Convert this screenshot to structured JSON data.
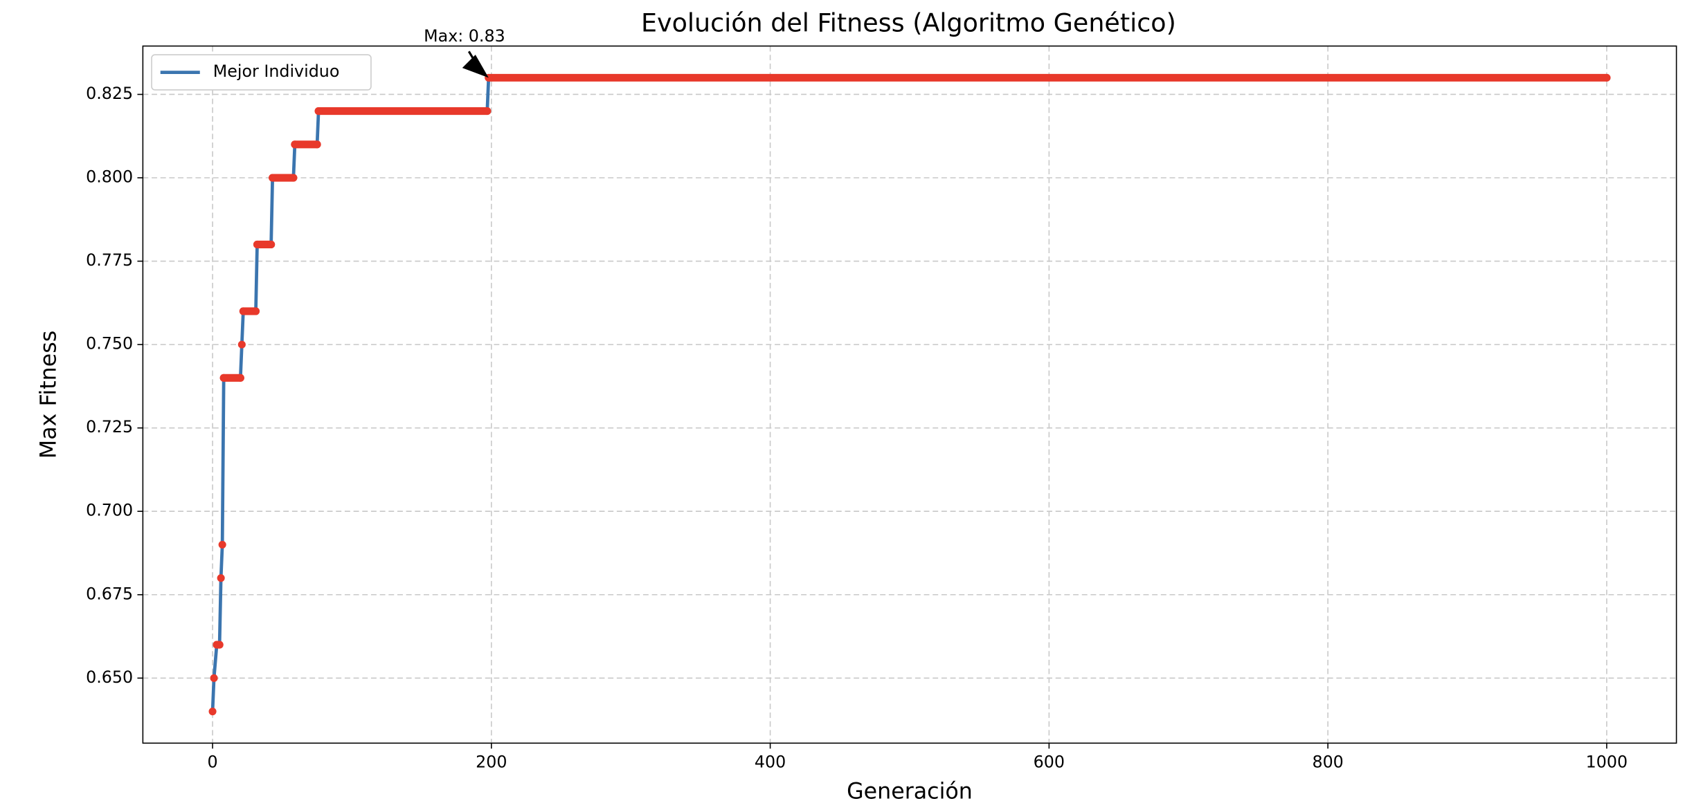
{
  "chart_data": {
    "type": "line",
    "title": "Evolución del Fitness (Algoritmo Genético)",
    "xlabel": "Generación",
    "ylabel": "Max Fitness",
    "annotation": "Max: 0.83",
    "series": [
      {
        "name": "Mejor Individuo",
        "color": "#3b75af",
        "marker_color": "#e8392b",
        "x": [
          0,
          1,
          3,
          5,
          6,
          7,
          8,
          20,
          21,
          22,
          31,
          32,
          42,
          43,
          58,
          59,
          75,
          76,
          197,
          198,
          1000
        ],
        "values": [
          0.64,
          0.65,
          0.66,
          0.66,
          0.68,
          0.69,
          0.74,
          0.74,
          0.75,
          0.76,
          0.76,
          0.78,
          0.78,
          0.8,
          0.8,
          0.81,
          0.81,
          0.82,
          0.82,
          0.83,
          0.83
        ]
      }
    ],
    "xlim": [
      -50,
      1050
    ],
    "xticks": [
      0,
      200,
      400,
      600,
      800,
      1000
    ],
    "ylim": [
      0.6305,
      0.8395
    ],
    "yticks": [
      {
        "value": 0.65,
        "label": "0.650"
      },
      {
        "value": 0.675,
        "label": "0.675"
      },
      {
        "value": 0.7,
        "label": "0.700"
      },
      {
        "value": 0.725,
        "label": "0.725"
      },
      {
        "value": 0.75,
        "label": "0.750"
      },
      {
        "value": 0.775,
        "label": "0.775"
      },
      {
        "value": 0.8,
        "label": "0.800"
      },
      {
        "value": 0.825,
        "label": "0.825"
      }
    ],
    "grid": true,
    "legend": "upper left"
  }
}
